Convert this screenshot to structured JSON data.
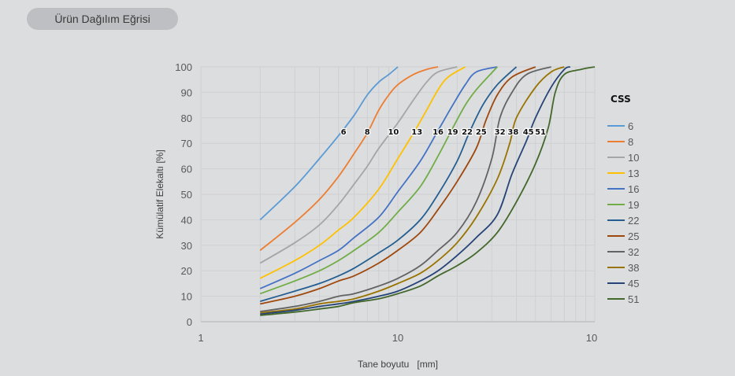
{
  "header": {
    "tab_label": "Ürün Dağılım Eğrisi"
  },
  "chart_data": {
    "type": "line",
    "title": "Ürün Dağılım Eğrisi",
    "xlabel": "Tane boyutu   [mm]",
    "ylabel": "Kümülatif Elekaltı [%]",
    "xscale": "log",
    "xlim": [
      1,
      100
    ],
    "ylim": [
      0,
      100
    ],
    "x_ticks": [
      "1",
      "10",
      "10"
    ],
    "y_ticks": [
      0,
      10,
      20,
      30,
      40,
      50,
      60,
      70,
      80,
      90,
      100
    ],
    "grid": true,
    "legend": {
      "title": "CSS",
      "position": "right"
    },
    "series": [
      {
        "name": "6",
        "color": "#5b9bd5",
        "label_x": 5.3,
        "points": [
          [
            2,
            40
          ],
          [
            3,
            53
          ],
          [
            4,
            64
          ],
          [
            5,
            73
          ],
          [
            6,
            81
          ],
          [
            7,
            89
          ],
          [
            8,
            94
          ],
          [
            9,
            97
          ],
          [
            10,
            100
          ]
        ]
      },
      {
        "name": "8",
        "color": "#ed7d31",
        "label_x": 7.0,
        "points": [
          [
            2,
            28
          ],
          [
            3,
            39
          ],
          [
            4,
            48
          ],
          [
            5,
            57
          ],
          [
            6,
            66
          ],
          [
            7,
            74
          ],
          [
            8,
            83
          ],
          [
            9,
            89
          ],
          [
            10,
            93
          ],
          [
            12,
            97
          ],
          [
            14,
            99
          ],
          [
            16,
            100
          ]
        ]
      },
      {
        "name": "10",
        "color": "#a5a5a5",
        "label_x": 9.5,
        "points": [
          [
            2,
            23
          ],
          [
            3,
            31
          ],
          [
            4,
            38
          ],
          [
            5,
            46
          ],
          [
            6,
            54
          ],
          [
            7,
            61
          ],
          [
            8,
            68
          ],
          [
            10,
            78
          ],
          [
            12,
            87
          ],
          [
            14,
            94
          ],
          [
            16,
            98
          ],
          [
            20,
            100
          ]
        ]
      },
      {
        "name": "13",
        "color": "#ffc000",
        "label_x": 12.5,
        "points": [
          [
            2,
            17
          ],
          [
            3,
            24
          ],
          [
            4,
            30
          ],
          [
            5,
            36
          ],
          [
            6,
            41
          ],
          [
            8,
            52
          ],
          [
            10,
            64
          ],
          [
            12,
            74
          ],
          [
            14,
            83
          ],
          [
            16,
            91
          ],
          [
            18,
            96
          ],
          [
            22,
            100
          ]
        ]
      },
      {
        "name": "16",
        "color": "#4472c4",
        "label_x": 16.0,
        "points": [
          [
            2,
            13
          ],
          [
            3,
            19
          ],
          [
            4,
            24
          ],
          [
            5,
            28
          ],
          [
            6,
            33
          ],
          [
            8,
            41
          ],
          [
            10,
            51
          ],
          [
            13,
            63
          ],
          [
            16,
            75
          ],
          [
            19,
            85
          ],
          [
            22,
            93
          ],
          [
            25,
            98
          ],
          [
            32,
            100
          ]
        ]
      },
      {
        "name": "19",
        "color": "#70ad47",
        "label_x": 19.0,
        "points": [
          [
            2,
            11
          ],
          [
            3,
            16
          ],
          [
            4,
            20
          ],
          [
            5,
            24
          ],
          [
            6,
            28
          ],
          [
            8,
            35
          ],
          [
            10,
            43
          ],
          [
            13,
            53
          ],
          [
            16,
            65
          ],
          [
            19,
            76
          ],
          [
            22,
            85
          ],
          [
            25,
            91
          ],
          [
            32,
            100
          ]
        ]
      },
      {
        "name": "22",
        "color": "#255e91",
        "label_x": 22.5,
        "points": [
          [
            2,
            8
          ],
          [
            3,
            12
          ],
          [
            4,
            15
          ],
          [
            5,
            18
          ],
          [
            6,
            21
          ],
          [
            8,
            27
          ],
          [
            10,
            32
          ],
          [
            13,
            40
          ],
          [
            16,
            50
          ],
          [
            20,
            63
          ],
          [
            23,
            74
          ],
          [
            27,
            85
          ],
          [
            32,
            93
          ],
          [
            40,
            100
          ]
        ]
      },
      {
        "name": "25",
        "color": "#9e480e",
        "label_x": 26.5,
        "points": [
          [
            2,
            7
          ],
          [
            3,
            10
          ],
          [
            4,
            13
          ],
          [
            5,
            16
          ],
          [
            6,
            18
          ],
          [
            8,
            23
          ],
          [
            10,
            28
          ],
          [
            13,
            35
          ],
          [
            16,
            44
          ],
          [
            20,
            55
          ],
          [
            25,
            68
          ],
          [
            28,
            79
          ],
          [
            32,
            89
          ],
          [
            38,
            96
          ],
          [
            50,
            100
          ]
        ]
      },
      {
        "name": "32",
        "color": "#636363",
        "label_x": 33.0,
        "points": [
          [
            2,
            4
          ],
          [
            3,
            6
          ],
          [
            4,
            8
          ],
          [
            5,
            10
          ],
          [
            6,
            11
          ],
          [
            8,
            14
          ],
          [
            10,
            17
          ],
          [
            13,
            22
          ],
          [
            16,
            28
          ],
          [
            20,
            35
          ],
          [
            25,
            47
          ],
          [
            30,
            64
          ],
          [
            33,
            80
          ],
          [
            38,
            90
          ],
          [
            45,
            97
          ],
          [
            60,
            100
          ]
        ]
      },
      {
        "name": "38",
        "color": "#997300",
        "label_x": 38.5,
        "points": [
          [
            2,
            3.5
          ],
          [
            3,
            5
          ],
          [
            4,
            7
          ],
          [
            5,
            8
          ],
          [
            6,
            9
          ],
          [
            8,
            12
          ],
          [
            10,
            15
          ],
          [
            13,
            19
          ],
          [
            16,
            24
          ],
          [
            20,
            31
          ],
          [
            25,
            41
          ],
          [
            32,
            56
          ],
          [
            37,
            70
          ],
          [
            40,
            80
          ],
          [
            50,
            92
          ],
          [
            60,
            98
          ],
          [
            70,
            100
          ]
        ]
      },
      {
        "name": "45",
        "color": "#264478",
        "label_x": 46.0,
        "points": [
          [
            2,
            3
          ],
          [
            3,
            4.5
          ],
          [
            4,
            6
          ],
          [
            5,
            7
          ],
          [
            6,
            8
          ],
          [
            8,
            10
          ],
          [
            10,
            12
          ],
          [
            13,
            16
          ],
          [
            16,
            20
          ],
          [
            20,
            26
          ],
          [
            25,
            33
          ],
          [
            32,
            42
          ],
          [
            38,
            58
          ],
          [
            45,
            71
          ],
          [
            50,
            80
          ],
          [
            60,
            92
          ],
          [
            70,
            99
          ],
          [
            75,
            100
          ]
        ]
      },
      {
        "name": "51",
        "color": "#43682b",
        "label_x": 53.0,
        "points": [
          [
            2,
            2.5
          ],
          [
            3,
            3.8
          ],
          [
            4,
            5
          ],
          [
            5,
            6
          ],
          [
            6,
            7.5
          ],
          [
            8,
            9
          ],
          [
            10,
            11
          ],
          [
            13,
            14
          ],
          [
            16,
            18
          ],
          [
            20,
            22
          ],
          [
            25,
            27
          ],
          [
            32,
            35
          ],
          [
            40,
            47
          ],
          [
            50,
            62
          ],
          [
            58,
            76
          ],
          [
            63,
            90
          ],
          [
            70,
            97
          ],
          [
            85,
            99
          ],
          [
            100,
            100
          ]
        ]
      }
    ]
  }
}
